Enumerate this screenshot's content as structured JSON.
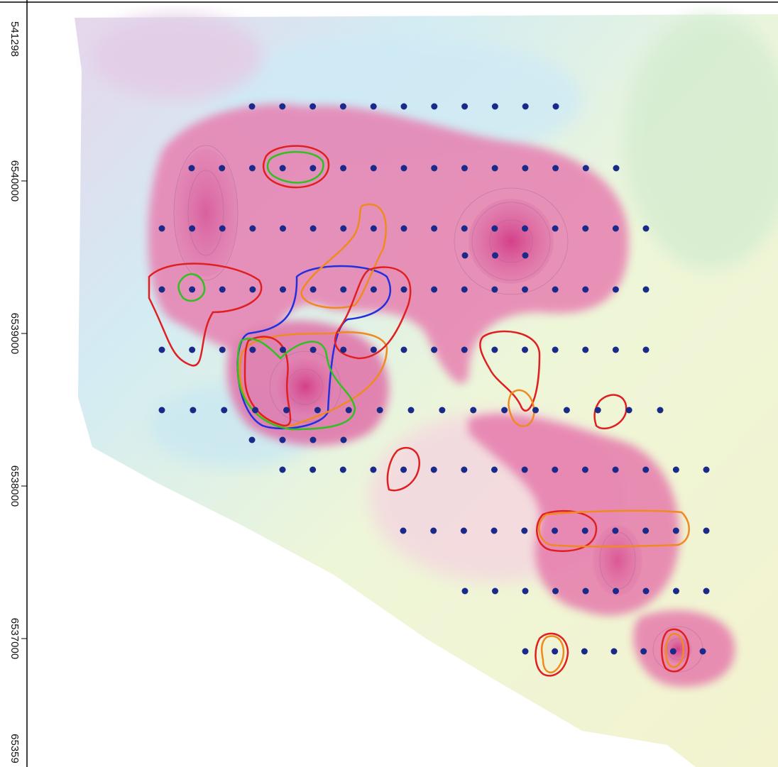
{
  "axis": {
    "labels": [
      "541298",
      "6540000",
      "6539000",
      "6538000",
      "6537000",
      "65359"
    ]
  }
}
